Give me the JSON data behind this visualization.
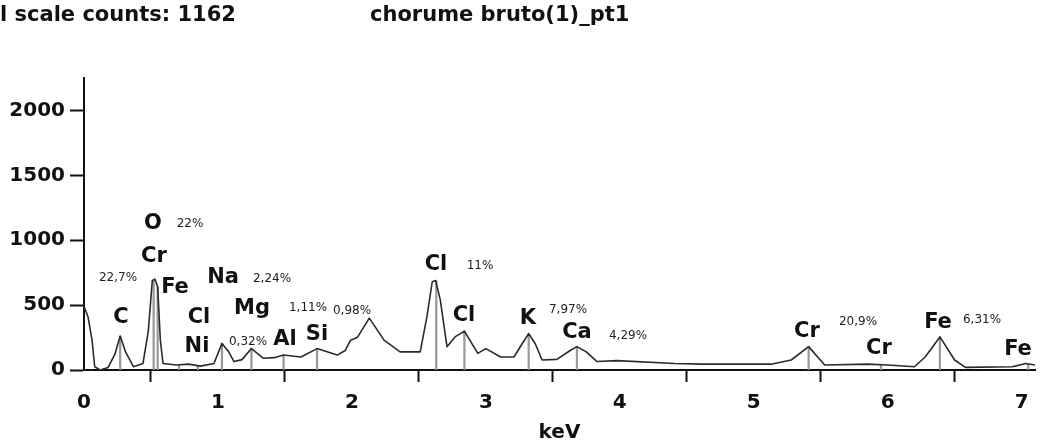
{
  "chart_data": {
    "type": "line",
    "title": "chorume bruto(1)_pt1",
    "xlabel": "keV",
    "xlim": [
      0,
      7.1
    ],
    "xticks": [
      0,
      1,
      2,
      3,
      4,
      5,
      6,
      7
    ],
    "ylim": [
      0,
      2250
    ],
    "yticks": [
      0,
      500,
      1000,
      1500,
      2000
    ],
    "grid": false,
    "legend": false,
    "marker": "none",
    "line_style": "solid",
    "series": [
      {
        "color": "#2b2b2b",
        "x": [
          0,
          0.03,
          0.06,
          0.08,
          0.12,
          0.18,
          0.23,
          0.27,
          0.31,
          0.37,
          0.44,
          0.48,
          0.51,
          0.53,
          0.55,
          0.57,
          0.59,
          0.69,
          0.78,
          0.87,
          0.97,
          1.03,
          1.08,
          1.12,
          1.18,
          1.25,
          1.34,
          1.42,
          1.49,
          1.62,
          1.74,
          1.89,
          1.95,
          1.99,
          2.04,
          2.13,
          2.24,
          2.36,
          2.51,
          2.56,
          2.6,
          2.625,
          2.66,
          2.71,
          2.77,
          2.84,
          2.94,
          3.0,
          3.11,
          3.21,
          3.27,
          3.32,
          3.37,
          3.42,
          3.53,
          3.63,
          3.68,
          3.75,
          3.83,
          3.98,
          4.41,
          4.61,
          5.13,
          5.28,
          5.41,
          5.53,
          5.85,
          6.0,
          6.2,
          6.28,
          6.39,
          6.5,
          6.58,
          6.93,
          7.03,
          7.1
        ],
        "values": [
          490,
          410,
          230,
          25,
          0,
          20,
          120,
          262,
          140,
          25,
          50,
          300,
          690,
          700,
          640,
          230,
          50,
          38,
          45,
          30,
          50,
          205,
          140,
          65,
          80,
          165,
          90,
          95,
          115,
          100,
          165,
          115,
          150,
          230,
          250,
          400,
          230,
          140,
          140,
          410,
          680,
          690,
          540,
          180,
          255,
          300,
          128,
          165,
          100,
          100,
          200,
          280,
          200,
          77,
          82,
          150,
          180,
          140,
          65,
          72,
          50,
          45,
          45,
          77,
          180,
          38,
          45,
          38,
          25,
          100,
          255,
          77,
          20,
          25,
          50,
          38
        ]
      },
      {
        "type": "bar",
        "color": "#9a9a9a",
        "x": [
          0.27,
          0.52,
          0.55,
          0.71,
          0.85,
          1.03,
          1.25,
          1.49,
          1.74,
          2.63,
          2.84,
          3.32,
          3.68,
          5.41,
          5.95,
          6.39,
          7.05
        ],
        "values": [
          260,
          690,
          640,
          38,
          32,
          205,
          165,
          115,
          160,
          690,
          300,
          280,
          180,
          180,
          40,
          255,
          45
        ]
      }
    ],
    "annotations": [
      "l scale counts: 1162",
      "C",
      "22,7%",
      "O",
      "22%",
      "Cr",
      "Fe",
      "Cl",
      "Ni",
      "Na",
      "2,24%",
      "Mg",
      "1,11%",
      "0,32%",
      "Al",
      "Si",
      "0,98%",
      "Cl",
      "11%",
      "Cl",
      "K",
      "7,97%",
      "Ca",
      "4,29%",
      "Cr",
      "20,9%",
      "Cr",
      "Fe",
      "6,31%",
      "Fe"
    ]
  }
}
